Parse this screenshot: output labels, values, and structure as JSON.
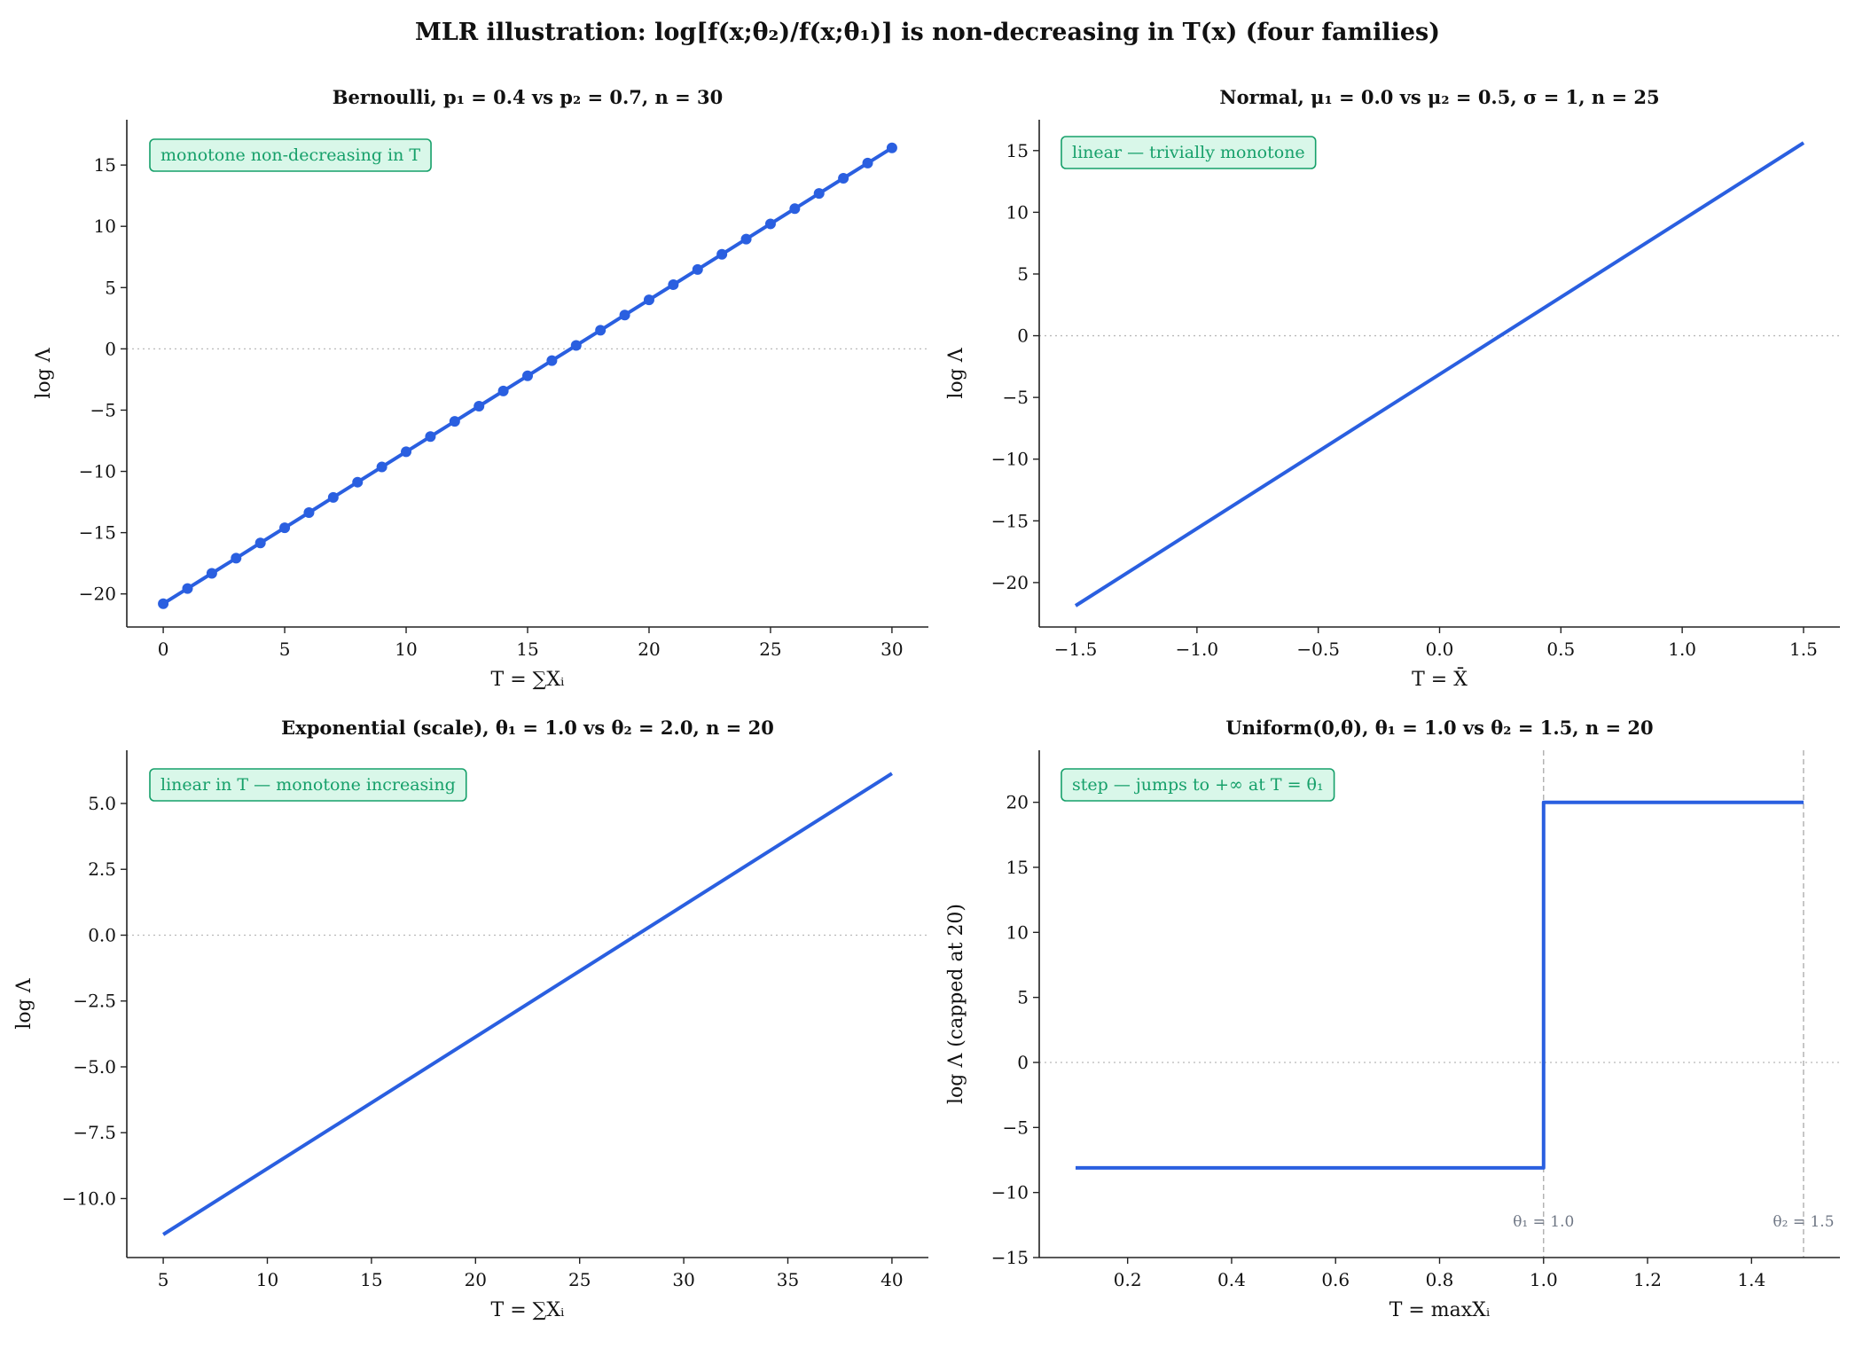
{
  "figure_title": "MLR illustration:  log[f(x;θ₂)/f(x;θ₁)] is non-decreasing in T(x)  (four families)",
  "colors": {
    "series": "#2a5fe0",
    "annotation_text": "#16a06a",
    "annotation_bg": "#d9f7e9",
    "guide": "#a9a9a9"
  },
  "chart_data": [
    {
      "type": "line",
      "title": "Bernoulli,  p₁ = 0.4 vs p₂ = 0.7,  n = 30",
      "xlabel": "T = ∑Xᵢ",
      "ylabel": "log Λ",
      "annotation": "monotone non-decreasing in T",
      "markers": true,
      "grid": false,
      "xlim": [
        -1.5,
        31.5
      ],
      "ylim": [
        -22.7,
        18.7
      ],
      "xticks": [
        0,
        5,
        10,
        15,
        20,
        25,
        30
      ],
      "xtick_labels": [
        "0",
        "5",
        "10",
        "15",
        "20",
        "25",
        "30"
      ],
      "yticks": [
        -20,
        -15,
        -10,
        -5,
        0,
        5,
        10,
        15
      ],
      "ytick_labels": [
        "−20",
        "−15",
        "−10",
        "−5",
        "0",
        "5",
        "10",
        "15"
      ],
      "series": [
        {
          "x": [
            0,
            1,
            2,
            3,
            4,
            5,
            6,
            7,
            8,
            9,
            10,
            11,
            12,
            13,
            14,
            15,
            16,
            17,
            18,
            19,
            20,
            21,
            22,
            23,
            24,
            25,
            26,
            27,
            28,
            29,
            30
          ],
          "y": [
            -20.8,
            -19.56,
            -18.32,
            -17.08,
            -15.84,
            -14.6,
            -13.36,
            -12.12,
            -10.88,
            -9.64,
            -8.4,
            -7.16,
            -5.92,
            -4.68,
            -3.44,
            -2.2,
            -0.96,
            0.28,
            1.52,
            2.76,
            4.0,
            5.24,
            6.48,
            7.72,
            8.96,
            10.2,
            11.44,
            12.68,
            13.92,
            15.16,
            16.4
          ]
        }
      ]
    },
    {
      "type": "line",
      "title": "Normal,  μ₁ = 0.0 vs μ₂ = 0.5,  σ = 1,  n = 25",
      "xlabel": "T = X̄",
      "ylabel": "log Λ",
      "annotation": "linear — trivially monotone",
      "markers": false,
      "grid": false,
      "xlim": [
        -1.65,
        1.65
      ],
      "ylim": [
        -23.6,
        17.5
      ],
      "xticks": [
        -1.5,
        -1.0,
        -0.5,
        0.0,
        0.5,
        1.0,
        1.5
      ],
      "xtick_labels": [
        "−1.5",
        "−1.0",
        "−0.5",
        "0.0",
        "0.5",
        "1.0",
        "1.5"
      ],
      "yticks": [
        -20,
        -15,
        -10,
        -5,
        0,
        5,
        10,
        15
      ],
      "ytick_labels": [
        "−20",
        "−15",
        "−10",
        "−5",
        "0",
        "5",
        "10",
        "15"
      ],
      "series": [
        {
          "x": [
            -1.5,
            1.5
          ],
          "y": [
            -21.875,
            15.625
          ]
        }
      ]
    },
    {
      "type": "line",
      "title": "Exponential (scale),  θ₁ = 1.0 vs θ₂ = 2.0,  n = 20",
      "xlabel": "T = ∑Xᵢ",
      "ylabel": "log Λ",
      "annotation": "linear in T — monotone increasing",
      "markers": false,
      "grid": false,
      "xlim": [
        3.25,
        41.75
      ],
      "ylim": [
        -12.24,
        7.02
      ],
      "xticks": [
        5,
        10,
        15,
        20,
        25,
        30,
        35,
        40
      ],
      "xtick_labels": [
        "5",
        "10",
        "15",
        "20",
        "25",
        "30",
        "35",
        "40"
      ],
      "yticks": [
        -10.0,
        -7.5,
        -5.0,
        -2.5,
        0.0,
        2.5,
        5.0
      ],
      "ytick_labels": [
        "−10.0",
        "−7.5",
        "−5.0",
        "−2.5",
        "0.0",
        "2.5",
        "5.0"
      ],
      "series": [
        {
          "x": [
            5,
            40
          ],
          "y": [
            -11.363,
            6.137
          ]
        }
      ]
    },
    {
      "type": "line",
      "title": "Uniform(0,θ),  θ₁ = 1.0 vs θ₂ = 1.5,  n = 20",
      "xlabel": "T = maxXᵢ",
      "ylabel": "log Λ  (capped at 20)",
      "annotation": "step — jumps to +∞ at T = θ₁",
      "markers": false,
      "grid": false,
      "xlim": [
        0.03,
        1.57
      ],
      "ylim": [
        -15,
        24
      ],
      "xticks": [
        0.2,
        0.4,
        0.6,
        0.8,
        1.0,
        1.2,
        1.4
      ],
      "xtick_labels": [
        "0.2",
        "0.4",
        "0.6",
        "0.8",
        "1.0",
        "1.2",
        "1.4"
      ],
      "yticks": [
        -15,
        -10,
        -5,
        0,
        5,
        10,
        15,
        20
      ],
      "ytick_labels": [
        "−15",
        "−10",
        "−5",
        "0",
        "5",
        "10",
        "15",
        "20"
      ],
      "vlines": [
        {
          "x": 1.0,
          "label": "θ₁ = 1.0"
        },
        {
          "x": 1.5,
          "label": "θ₂ = 1.5"
        }
      ],
      "series": [
        {
          "x": [
            0.1,
            1.0,
            1.0,
            1.5
          ],
          "y": [
            -8.109,
            -8.109,
            20,
            20
          ]
        }
      ]
    }
  ]
}
